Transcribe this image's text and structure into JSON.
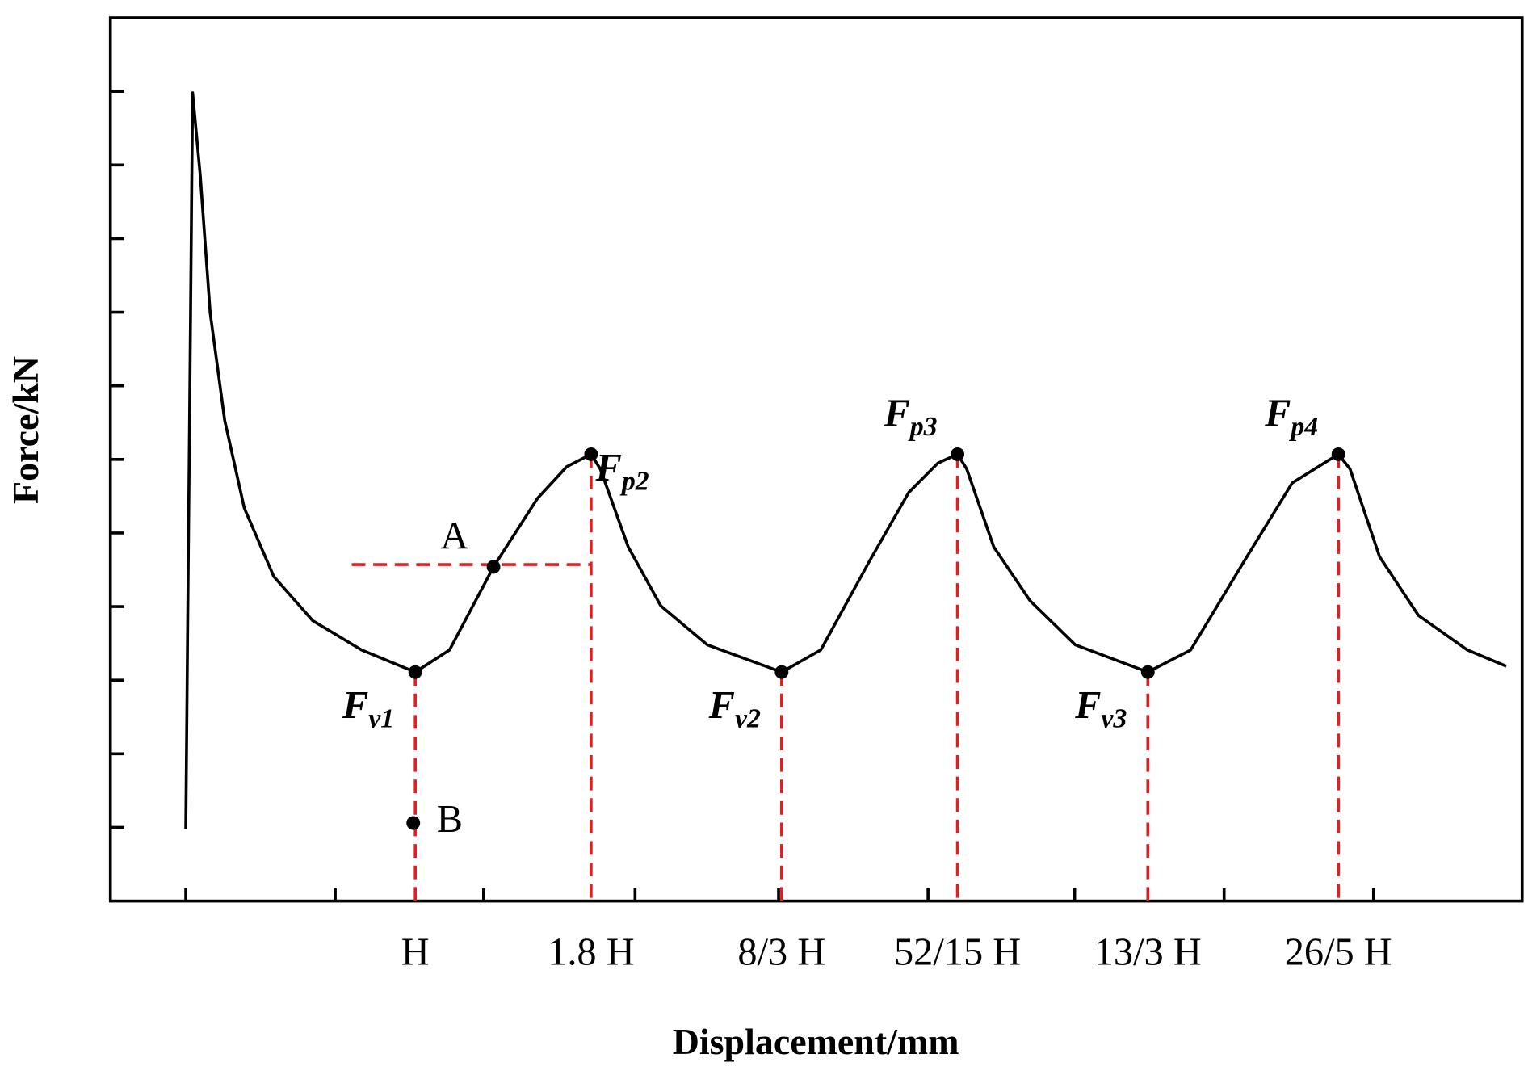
{
  "chart_data": {
    "type": "line",
    "xlabel": "Displacement/mm",
    "ylabel": "Force/kN",
    "xlim": [
      -0.387,
      6.036
    ],
    "ylim": [
      0,
      12
    ],
    "xticks": [
      {
        "value": 1,
        "label": "H"
      },
      {
        "value": 1.8,
        "label": "1.8 H"
      },
      {
        "value": 2.667,
        "label": "8/3 H"
      },
      {
        "value": 3.467,
        "label": "52/15 H"
      },
      {
        "value": 4.333,
        "label": "13/3 H"
      },
      {
        "value": 5.2,
        "label": "26/5 H"
      }
    ],
    "xtickmarks": [
      -0.044,
      0.636,
      1.311,
      2.0,
      2.653,
      3.333,
      4.0,
      4.68,
      5.36
    ],
    "ytickmarks": [
      1,
      2,
      3,
      4,
      5,
      6,
      7,
      8,
      9,
      10,
      11
    ],
    "series": [
      {
        "color": "#000000",
        "x": [
          -0.044,
          -0.013,
          0.022,
          0.067,
          0.133,
          0.222,
          0.356,
          0.533,
          0.756,
          1.0,
          1.156,
          1.356,
          1.556,
          1.689,
          1.8,
          1.842,
          1.969,
          2.117,
          2.329,
          2.667,
          2.845,
          3.067,
          3.245,
          3.378,
          3.467,
          3.509,
          3.632,
          3.797,
          4.003,
          4.333,
          4.528,
          4.772,
          4.99,
          5.2,
          5.253,
          5.387,
          5.564,
          5.787,
          5.964
        ],
        "values": [
          0.98,
          10.98,
          9.85,
          7.99,
          6.53,
          5.34,
          4.41,
          3.81,
          3.41,
          3.11,
          3.41,
          4.54,
          5.47,
          5.9,
          6.07,
          5.87,
          4.81,
          4.01,
          3.48,
          3.11,
          3.41,
          4.62,
          5.55,
          5.95,
          6.07,
          5.87,
          4.81,
          4.08,
          3.48,
          3.11,
          3.41,
          4.62,
          5.68,
          6.07,
          5.87,
          4.68,
          3.88,
          3.41,
          3.19
        ]
      }
    ],
    "points": [
      {
        "label": "F",
        "subscript": "v1",
        "x": 1.0,
        "y": 3.11,
        "guide": true,
        "label_side": "below-left"
      },
      {
        "label": "F",
        "subscript": "p2",
        "x": 1.8,
        "y": 6.07,
        "guide": true,
        "label_side": "right"
      },
      {
        "label": "F",
        "subscript": "v2",
        "x": 2.667,
        "y": 3.11,
        "guide": true,
        "label_side": "below-left"
      },
      {
        "label": "F",
        "subscript": "p3",
        "x": 3.467,
        "y": 6.07,
        "guide": true,
        "label_side": "above-left"
      },
      {
        "label": "F",
        "subscript": "v3",
        "x": 4.333,
        "y": 3.11,
        "guide": true,
        "label_side": "below-left"
      },
      {
        "label": "F",
        "subscript": "p4",
        "x": 5.2,
        "y": 6.07,
        "guide": true,
        "label_side": "above-left"
      },
      {
        "label": "A",
        "x": 1.356,
        "y": 4.54,
        "guide": false,
        "label_side": "above-left"
      },
      {
        "label": "B",
        "x": 0.991,
        "y": 1.06,
        "guide": false,
        "label_side": "right"
      }
    ],
    "reference_line": {
      "y": 4.57,
      "xrange": [
        0.711,
        1.8
      ]
    },
    "guide_color": "#e02020",
    "marker_color": "#000000"
  }
}
